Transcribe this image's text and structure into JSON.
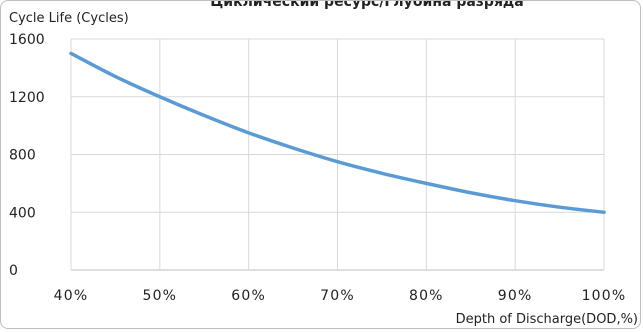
{
  "chart_data": {
    "type": "line",
    "title": "Циклический ресурс/Глубина разряда",
    "ylabel": "Cycle Life (Cycles)",
    "xlabel": "Depth of Discharge(DOD,%)",
    "x": [
      40,
      45,
      50,
      55,
      60,
      65,
      70,
      75,
      80,
      85,
      90,
      95,
      100
    ],
    "x_tick_labels": [
      "40%",
      "50%",
      "60%",
      "70%",
      "80%",
      "90%",
      "100%"
    ],
    "y_tick_labels": [
      "0",
      "400",
      "800",
      "1200",
      "1600"
    ],
    "xlim": [
      40,
      100
    ],
    "ylim": [
      0,
      1600
    ],
    "grid": true,
    "series": [
      {
        "values": [
          1500,
          1340,
          1200,
          1070,
          950,
          845,
          750,
          670,
          600,
          535,
          480,
          435,
          400
        ],
        "color": "#5b9bd5"
      }
    ]
  }
}
